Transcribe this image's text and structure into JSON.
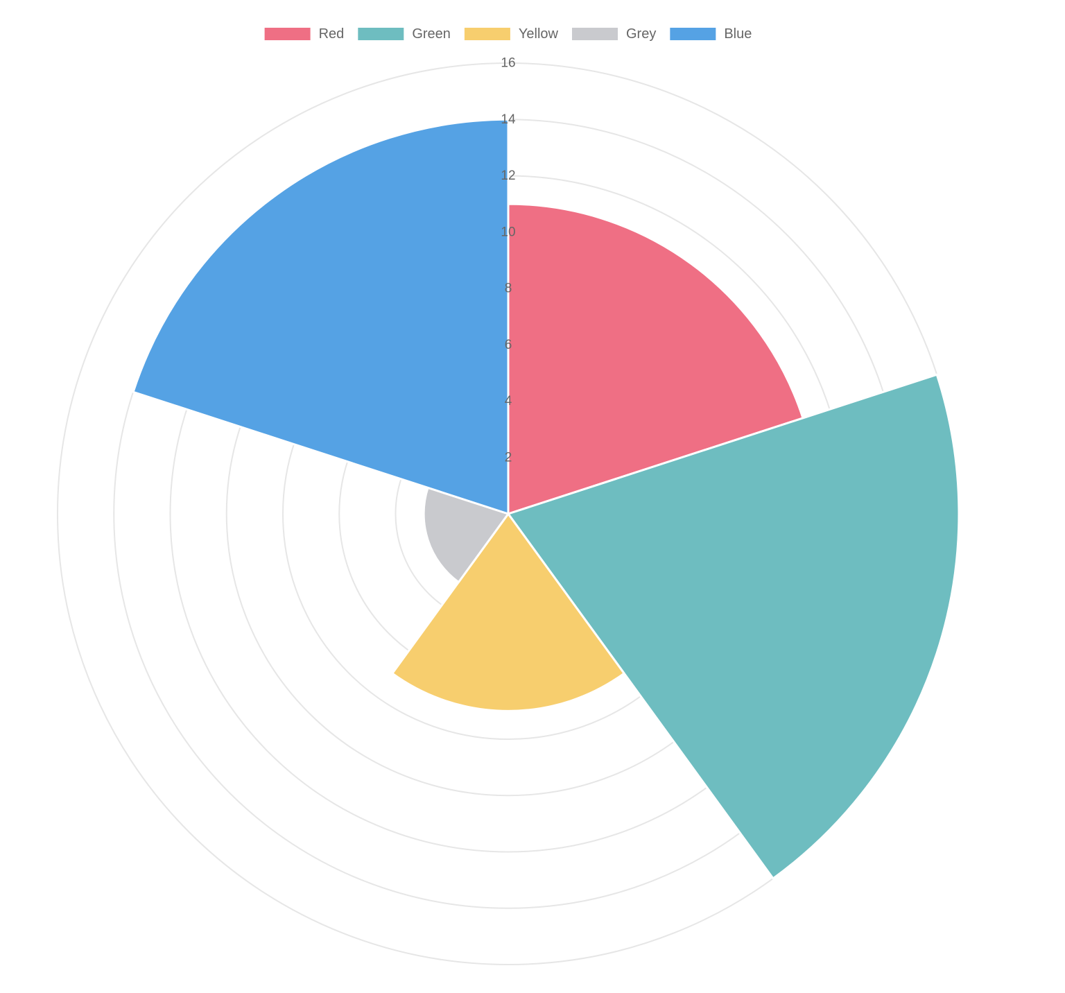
{
  "chart_data": {
    "type": "polarArea",
    "categories": [
      "Red",
      "Green",
      "Yellow",
      "Grey",
      "Blue"
    ],
    "values": [
      11,
      16,
      7,
      3,
      14
    ],
    "colors": [
      "#ef6f84",
      "#6ebdc0",
      "#f7ce6e",
      "#c9cace",
      "#55a2e4"
    ],
    "r_axis": {
      "min": 0,
      "max": 16,
      "step": 2,
      "tick_labels": [
        "2",
        "4",
        "6",
        "8",
        "10",
        "12",
        "14",
        "16"
      ]
    },
    "legend": {
      "position": "top",
      "items": [
        {
          "label": "Red",
          "color": "#ef6f84"
        },
        {
          "label": "Green",
          "color": "#6ebdc0"
        },
        {
          "label": "Yellow",
          "color": "#f7ce6e"
        },
        {
          "label": "Grey",
          "color": "#c9cace"
        },
        {
          "label": "Blue",
          "color": "#55a2e4"
        }
      ]
    },
    "grid": true
  }
}
